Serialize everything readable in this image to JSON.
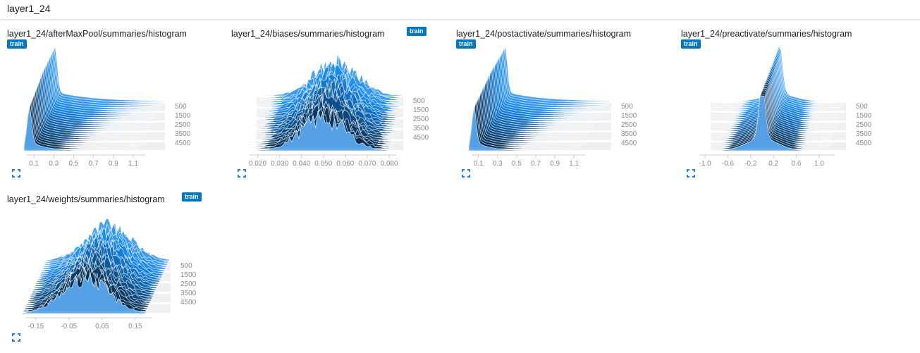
{
  "group": {
    "title": "layer1_24"
  },
  "accent_color": "#0277bd",
  "chart_data": [
    {
      "type": "area",
      "title": "layer1_24/afterMaxPool/summaries/histogram",
      "run": "train",
      "shape": "spike-left-decay",
      "peak": 0.05,
      "x_ticks": [
        "0.1",
        "0.3",
        "0.5",
        "0.7",
        "0.9",
        "1.1"
      ],
      "x_tick_values": [
        0.1,
        0.3,
        0.5,
        0.7,
        0.9,
        1.1
      ],
      "xlim": [
        0.0,
        1.15
      ],
      "y_ticks": [
        "500",
        "1500",
        "2500",
        "3500",
        "4500"
      ],
      "steps": [
        0,
        4500
      ]
    },
    {
      "type": "area",
      "title": "layer1_24/biases/summaries/histogram",
      "run": "train",
      "shape": "jagged-center-peak",
      "peak": 0.05,
      "x_ticks": [
        "0.020",
        "0.030",
        "0.040",
        "0.050",
        "0.060",
        "0.070",
        "0.080"
      ],
      "x_tick_values": [
        0.02,
        0.03,
        0.04,
        0.05,
        0.06,
        0.07,
        0.08
      ],
      "xlim": [
        0.015,
        0.08
      ],
      "y_ticks": [
        "500",
        "1500",
        "2500",
        "3500",
        "4500"
      ],
      "steps": [
        0,
        4500
      ]
    },
    {
      "type": "area",
      "title": "layer1_24/postactivate/summaries/histogram",
      "run": "train",
      "shape": "spike-left-decay",
      "peak": 0.05,
      "x_ticks": [
        "0.1",
        "0.3",
        "0.5",
        "0.7",
        "0.9",
        "1.1"
      ],
      "x_tick_values": [
        0.1,
        0.3,
        0.5,
        0.7,
        0.9,
        1.1
      ],
      "xlim": [
        0.0,
        1.15
      ],
      "y_ticks": [
        "500",
        "1500",
        "2500",
        "3500",
        "4500"
      ],
      "steps": [
        0,
        4500
      ]
    },
    {
      "type": "area",
      "title": "layer1_24/preactivate/summaries/histogram",
      "run": "train",
      "shape": "spike-center",
      "peak": 0.0,
      "x_ticks": [
        "-1.0",
        "-0.6",
        "-0.2",
        "0.2",
        "0.6",
        "1.0"
      ],
      "x_tick_values": [
        -1.0,
        -0.6,
        -0.2,
        0.2,
        0.6,
        1.0
      ],
      "xlim": [
        -1.15,
        1.15
      ],
      "y_ticks": [
        "500",
        "1500",
        "2500",
        "3500",
        "4500"
      ],
      "steps": [
        0,
        4500
      ]
    },
    {
      "type": "area",
      "title": "layer1_24/weights/summaries/histogram",
      "run": "train",
      "shape": "wide-mound",
      "peak": 0.0,
      "x_ticks": [
        "-0.15",
        "-0.05",
        "0.05",
        "0.15"
      ],
      "x_tick_values": [
        -0.15,
        -0.05,
        0.05,
        0.15
      ],
      "xlim": [
        -0.19,
        0.18
      ],
      "y_ticks": [
        "500",
        "1500",
        "2500",
        "3500",
        "4500"
      ],
      "steps": [
        0,
        4500
      ]
    }
  ]
}
